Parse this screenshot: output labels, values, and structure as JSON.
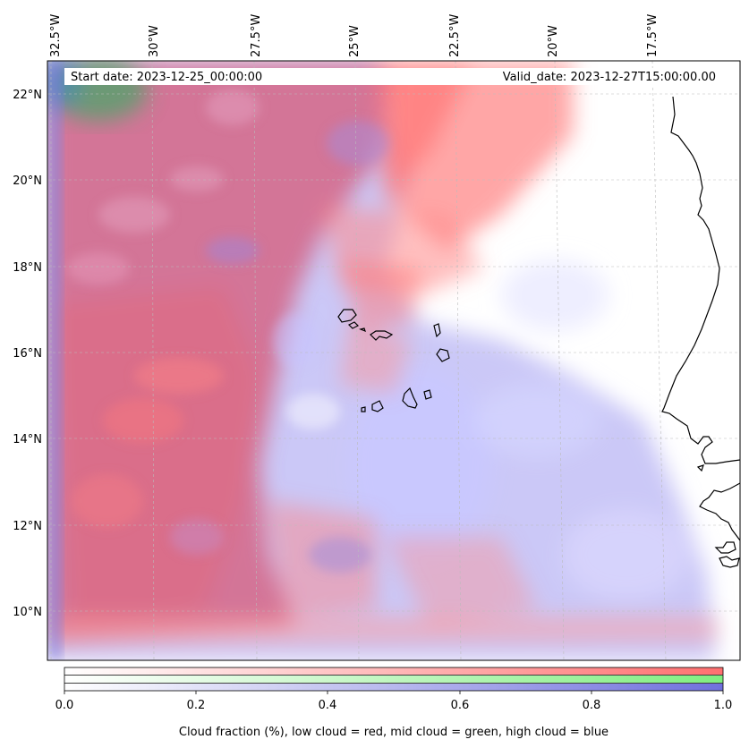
{
  "header": {
    "start_date": "Start date: 2023-12-25_00:00:00",
    "valid_date": "Valid_date: 2023-12-27T15:00:00.00"
  },
  "axes": {
    "lon_labels": [
      "32.5°W",
      "30°W",
      "27.5°W",
      "25°W",
      "22.5°W",
      "20°W",
      "17.5°W"
    ],
    "lat_labels": [
      "22°N",
      "20°N",
      "18°N",
      "16°N",
      "14°N",
      "12°N",
      "10°N"
    ]
  },
  "colorbar": {
    "ticks": [
      "0.0",
      "0.2",
      "0.4",
      "0.6",
      "0.8",
      "1.0"
    ],
    "title": "Cloud fraction (%), low cloud = red, mid cloud = green, high cloud = blue",
    "colors": {
      "low": "#ff7f7f",
      "mid": "#8ff08f",
      "high": "#7f7fdf"
    }
  },
  "colors": {
    "low": "#ff7777",
    "mid": "#66bb77",
    "high": "#8a7fe6",
    "mix": "#d0708f"
  }
}
